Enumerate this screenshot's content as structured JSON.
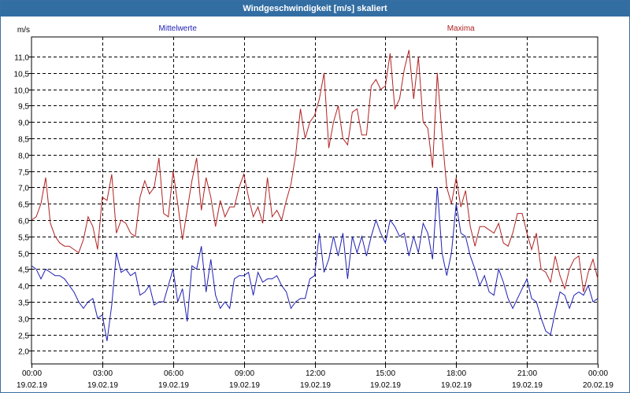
{
  "window": {
    "title": "Windgeschwindigkeit [m/s] skaliert"
  },
  "colors": {
    "title_bg": "#336ea3",
    "series_mean": "#1f1fb4",
    "series_max": "#b22222",
    "grid": "#000000"
  },
  "chart_data": {
    "type": "line",
    "ylabel": "m/s",
    "ylim": [
      1.6,
      11.6
    ],
    "yticks": [
      2.0,
      2.5,
      3.0,
      3.5,
      4.0,
      4.5,
      5.0,
      5.5,
      6.0,
      6.5,
      7.0,
      7.5,
      8.0,
      8.5,
      9.0,
      9.5,
      10.0,
      10.5,
      11.0
    ],
    "ytick_labels": [
      "2,0",
      "2,5",
      "3,0",
      "3,5",
      "4,0",
      "4,5",
      "5,0",
      "5,5",
      "6,0",
      "6,5",
      "7,0",
      "7,5",
      "8,0",
      "8,5",
      "9,0",
      "9,5",
      "10,0",
      "10,5",
      "11,0"
    ],
    "xlim_hours": [
      0,
      24
    ],
    "xticks": [
      {
        "hour": 0,
        "time": "00:00",
        "date": "19.02.19"
      },
      {
        "hour": 3,
        "time": "03:00",
        "date": "19.02.19"
      },
      {
        "hour": 6,
        "time": "06:00",
        "date": "19.02.19"
      },
      {
        "hour": 9,
        "time": "09:00",
        "date": "19.02.19"
      },
      {
        "hour": 12,
        "time": "12:00",
        "date": "19.02.19"
      },
      {
        "hour": 15,
        "time": "15:00",
        "date": "19.02.19"
      },
      {
        "hour": 18,
        "time": "18:00",
        "date": "19.02.19"
      },
      {
        "hour": 21,
        "time": "21:00",
        "date": "19.02.19"
      },
      {
        "hour": 24,
        "time": "00:00",
        "date": "20.02.19"
      }
    ],
    "grid": true,
    "series": [
      {
        "name": "Mittelwerte",
        "color": "#1f1fb4",
        "points": [
          [
            0,
            4.6
          ],
          [
            0.2,
            4.5
          ],
          [
            0.4,
            4.2
          ],
          [
            0.6,
            4.5
          ],
          [
            0.8,
            4.4
          ],
          [
            1.0,
            4.3
          ],
          [
            1.2,
            4.3
          ],
          [
            1.4,
            4.2
          ],
          [
            1.6,
            4.0
          ],
          [
            1.8,
            3.8
          ],
          [
            2.0,
            3.5
          ],
          [
            2.2,
            3.3
          ],
          [
            2.4,
            3.5
          ],
          [
            2.6,
            3.6
          ],
          [
            2.8,
            3.0
          ],
          [
            3.0,
            3.1
          ],
          [
            3.2,
            2.3
          ],
          [
            3.4,
            3.4
          ],
          [
            3.6,
            5.0
          ],
          [
            3.8,
            4.4
          ],
          [
            4.0,
            4.5
          ],
          [
            4.2,
            4.3
          ],
          [
            4.4,
            4.4
          ],
          [
            4.6,
            3.7
          ],
          [
            4.8,
            3.8
          ],
          [
            5.0,
            4.0
          ],
          [
            5.2,
            3.4
          ],
          [
            5.4,
            3.5
          ],
          [
            5.6,
            3.5
          ],
          [
            5.8,
            4.0
          ],
          [
            6.0,
            4.5
          ],
          [
            6.2,
            3.5
          ],
          [
            6.4,
            3.9
          ],
          [
            6.6,
            2.9
          ],
          [
            6.8,
            4.6
          ],
          [
            7.0,
            4.5
          ],
          [
            7.2,
            5.2
          ],
          [
            7.4,
            3.8
          ],
          [
            7.6,
            4.8
          ],
          [
            7.8,
            3.7
          ],
          [
            8.0,
            3.3
          ],
          [
            8.2,
            3.5
          ],
          [
            8.4,
            3.3
          ],
          [
            8.6,
            4.2
          ],
          [
            8.8,
            4.3
          ],
          [
            9.0,
            4.3
          ],
          [
            9.2,
            4.4
          ],
          [
            9.4,
            3.7
          ],
          [
            9.6,
            4.4
          ],
          [
            9.8,
            4.1
          ],
          [
            10.0,
            4.2
          ],
          [
            10.2,
            4.2
          ],
          [
            10.4,
            4.3
          ],
          [
            10.6,
            4.0
          ],
          [
            10.8,
            3.8
          ],
          [
            11.0,
            3.3
          ],
          [
            11.2,
            3.5
          ],
          [
            11.4,
            3.6
          ],
          [
            11.6,
            3.6
          ],
          [
            11.8,
            4.2
          ],
          [
            12.0,
            4.3
          ],
          [
            12.2,
            5.6
          ],
          [
            12.4,
            4.4
          ],
          [
            12.6,
            4.8
          ],
          [
            12.8,
            5.5
          ],
          [
            13.0,
            4.9
          ],
          [
            13.2,
            5.6
          ],
          [
            13.4,
            4.2
          ],
          [
            13.6,
            5.5
          ],
          [
            13.8,
            5.0
          ],
          [
            14.0,
            5.5
          ],
          [
            14.2,
            4.9
          ],
          [
            14.4,
            5.5
          ],
          [
            14.6,
            6.0
          ],
          [
            14.8,
            5.6
          ],
          [
            15.0,
            5.3
          ],
          [
            15.2,
            6.0
          ],
          [
            15.4,
            5.8
          ],
          [
            15.6,
            5.5
          ],
          [
            15.8,
            5.6
          ],
          [
            16.0,
            4.9
          ],
          [
            16.2,
            5.5
          ],
          [
            16.4,
            5.0
          ],
          [
            16.6,
            5.9
          ],
          [
            16.8,
            5.6
          ],
          [
            17.0,
            4.8
          ],
          [
            17.2,
            7.0
          ],
          [
            17.4,
            5.0
          ],
          [
            17.6,
            4.3
          ],
          [
            17.8,
            5.0
          ],
          [
            18.0,
            6.5
          ],
          [
            18.2,
            5.6
          ],
          [
            18.4,
            5.5
          ],
          [
            18.6,
            4.9
          ],
          [
            18.8,
            4.5
          ],
          [
            19.0,
            4.0
          ],
          [
            19.2,
            4.3
          ],
          [
            19.4,
            3.8
          ],
          [
            19.6,
            3.7
          ],
          [
            19.8,
            4.5
          ],
          [
            20.0,
            4.1
          ],
          [
            20.2,
            3.6
          ],
          [
            20.4,
            3.3
          ],
          [
            20.6,
            3.6
          ],
          [
            20.8,
            3.9
          ],
          [
            21.0,
            4.2
          ],
          [
            21.2,
            3.6
          ],
          [
            21.4,
            3.5
          ],
          [
            21.6,
            3.0
          ],
          [
            21.8,
            2.6
          ],
          [
            22.0,
            2.5
          ],
          [
            22.2,
            3.2
          ],
          [
            22.4,
            3.8
          ],
          [
            22.6,
            3.7
          ],
          [
            22.8,
            3.3
          ],
          [
            23.0,
            3.7
          ],
          [
            23.2,
            3.8
          ],
          [
            23.4,
            3.7
          ],
          [
            23.6,
            4.0
          ],
          [
            23.8,
            3.5
          ],
          [
            24.0,
            3.6
          ]
        ]
      },
      {
        "name": "Maxima",
        "color": "#b22222",
        "points": [
          [
            0,
            6.0
          ],
          [
            0.2,
            6.1
          ],
          [
            0.4,
            6.5
          ],
          [
            0.6,
            7.3
          ],
          [
            0.8,
            5.9
          ],
          [
            1.0,
            5.5
          ],
          [
            1.2,
            5.3
          ],
          [
            1.4,
            5.2
          ],
          [
            1.6,
            5.2
          ],
          [
            1.8,
            5.1
          ],
          [
            2.0,
            5.0
          ],
          [
            2.2,
            5.4
          ],
          [
            2.4,
            6.1
          ],
          [
            2.6,
            5.8
          ],
          [
            2.8,
            5.1
          ],
          [
            3.0,
            6.7
          ],
          [
            3.2,
            6.6
          ],
          [
            3.4,
            7.4
          ],
          [
            3.6,
            5.6
          ],
          [
            3.8,
            6.0
          ],
          [
            4.0,
            5.9
          ],
          [
            4.2,
            5.6
          ],
          [
            4.4,
            5.5
          ],
          [
            4.6,
            6.7
          ],
          [
            4.8,
            7.2
          ],
          [
            5.0,
            6.8
          ],
          [
            5.2,
            7.0
          ],
          [
            5.4,
            7.9
          ],
          [
            5.6,
            6.2
          ],
          [
            5.8,
            6.1
          ],
          [
            6.0,
            7.5
          ],
          [
            6.2,
            6.5
          ],
          [
            6.4,
            5.4
          ],
          [
            6.6,
            6.3
          ],
          [
            6.8,
            7.2
          ],
          [
            7.0,
            7.9
          ],
          [
            7.2,
            6.3
          ],
          [
            7.4,
            7.3
          ],
          [
            7.6,
            6.7
          ],
          [
            7.8,
            5.8
          ],
          [
            8.0,
            6.6
          ],
          [
            8.2,
            6.1
          ],
          [
            8.4,
            6.4
          ],
          [
            8.6,
            6.4
          ],
          [
            8.8,
            7.0
          ],
          [
            9.0,
            7.4
          ],
          [
            9.2,
            6.7
          ],
          [
            9.4,
            6.1
          ],
          [
            9.6,
            6.4
          ],
          [
            9.8,
            5.9
          ],
          [
            10.0,
            7.3
          ],
          [
            10.2,
            6.1
          ],
          [
            10.4,
            6.3
          ],
          [
            10.6,
            6.0
          ],
          [
            10.8,
            6.6
          ],
          [
            11.0,
            7.1
          ],
          [
            11.2,
            8.0
          ],
          [
            11.4,
            9.4
          ],
          [
            11.6,
            8.5
          ],
          [
            11.8,
            9.0
          ],
          [
            12.0,
            9.2
          ],
          [
            12.2,
            9.7
          ],
          [
            12.4,
            10.5
          ],
          [
            12.6,
            8.2
          ],
          [
            12.8,
            9.0
          ],
          [
            13.0,
            9.5
          ],
          [
            13.2,
            8.5
          ],
          [
            13.4,
            8.3
          ],
          [
            13.6,
            9.3
          ],
          [
            13.8,
            9.4
          ],
          [
            14.0,
            8.6
          ],
          [
            14.2,
            8.6
          ],
          [
            14.4,
            10.1
          ],
          [
            14.6,
            10.3
          ],
          [
            14.8,
            10.0
          ],
          [
            15.0,
            10.1
          ],
          [
            15.2,
            11.1
          ],
          [
            15.4,
            9.4
          ],
          [
            15.6,
            9.7
          ],
          [
            15.8,
            10.6
          ],
          [
            16.0,
            11.2
          ],
          [
            16.2,
            9.7
          ],
          [
            16.4,
            11.0
          ],
          [
            16.6,
            9.0
          ],
          [
            16.8,
            8.8
          ],
          [
            17.0,
            7.6
          ],
          [
            17.2,
            10.5
          ],
          [
            17.4,
            8.6
          ],
          [
            17.6,
            7.0
          ],
          [
            17.8,
            6.5
          ],
          [
            18.0,
            7.3
          ],
          [
            18.2,
            6.4
          ],
          [
            18.4,
            6.9
          ],
          [
            18.6,
            5.8
          ],
          [
            18.8,
            5.2
          ],
          [
            19.0,
            5.8
          ],
          [
            19.2,
            5.8
          ],
          [
            19.4,
            5.7
          ],
          [
            19.6,
            5.6
          ],
          [
            19.8,
            5.9
          ],
          [
            20.0,
            5.3
          ],
          [
            20.2,
            5.2
          ],
          [
            20.4,
            5.6
          ],
          [
            20.6,
            6.2
          ],
          [
            20.8,
            6.2
          ],
          [
            21.0,
            5.6
          ],
          [
            21.2,
            5.1
          ],
          [
            21.4,
            5.6
          ],
          [
            21.6,
            4.5
          ],
          [
            21.8,
            4.4
          ],
          [
            22.0,
            4.1
          ],
          [
            22.2,
            4.9
          ],
          [
            22.4,
            4.3
          ],
          [
            22.6,
            3.9
          ],
          [
            22.8,
            4.5
          ],
          [
            23.0,
            4.8
          ],
          [
            23.2,
            4.9
          ],
          [
            23.4,
            3.8
          ],
          [
            23.6,
            4.4
          ],
          [
            23.8,
            4.8
          ],
          [
            24.0,
            4.2
          ]
        ]
      }
    ]
  }
}
